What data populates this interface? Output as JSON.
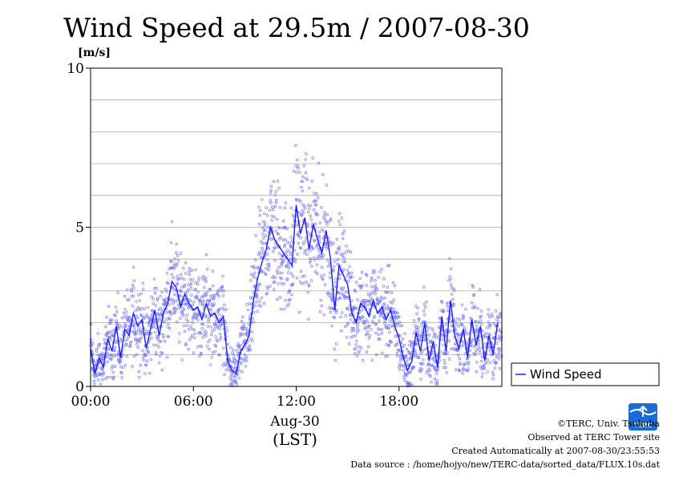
{
  "chart_data": {
    "type": "scatter",
    "title": "Wind Speed at 29.5m / 2007-08-30",
    "ylabel": "[m/s]",
    "xlabel": "Aug-30",
    "xlabel2": "(LST)",
    "ylim": [
      0,
      10
    ],
    "xlim": [
      0,
      24
    ],
    "y_ticks": [
      "0",
      "5",
      "10"
    ],
    "x_ticks": [
      "00:00",
      "06:00",
      "12:00",
      "18:00"
    ],
    "x_tick_hours": [
      0,
      6,
      12,
      18
    ],
    "grid": true,
    "legend_position": "right",
    "colors": {
      "series": "#1a1aff",
      "scatter": "#6a6aff",
      "grid": "#aaaaaa"
    },
    "series": [
      {
        "name": "Wind Speed",
        "x_hours": [
          0.0,
          0.25,
          0.5,
          0.75,
          1.0,
          1.25,
          1.5,
          1.75,
          2.0,
          2.25,
          2.5,
          2.75,
          3.0,
          3.25,
          3.5,
          3.75,
          4.0,
          4.25,
          4.5,
          4.75,
          5.0,
          5.25,
          5.5,
          5.75,
          6.0,
          6.25,
          6.5,
          6.75,
          7.0,
          7.25,
          7.5,
          7.75,
          8.0,
          8.25,
          8.5,
          8.75,
          9.0,
          9.25,
          9.5,
          9.75,
          10.0,
          10.25,
          10.5,
          10.75,
          11.0,
          11.25,
          11.5,
          11.75,
          12.0,
          12.25,
          12.5,
          12.75,
          13.0,
          13.25,
          13.5,
          13.75,
          14.0,
          14.25,
          14.5,
          14.75,
          15.0,
          15.25,
          15.5,
          15.75,
          16.0,
          16.25,
          16.5,
          16.75,
          17.0,
          17.25,
          17.5,
          17.75,
          18.0,
          18.25,
          18.5,
          18.75,
          19.0,
          19.25,
          19.5,
          19.75,
          20.0,
          20.25,
          20.5,
          20.75,
          21.0,
          21.25,
          21.5,
          21.75,
          22.0,
          22.25,
          22.5,
          22.75,
          23.0,
          23.25,
          23.5,
          23.75
        ],
        "values": [
          1.2,
          0.4,
          0.9,
          0.6,
          1.5,
          1.1,
          1.9,
          0.9,
          1.8,
          1.6,
          2.3,
          1.9,
          2.1,
          1.2,
          1.8,
          2.4,
          1.6,
          2.3,
          2.6,
          3.3,
          3.1,
          2.5,
          2.9,
          2.6,
          2.4,
          2.5,
          2.1,
          2.6,
          2.2,
          2.3,
          2.0,
          2.2,
          0.8,
          0.5,
          0.4,
          1.1,
          1.3,
          1.6,
          2.7,
          3.4,
          3.9,
          4.3,
          5.0,
          4.6,
          4.4,
          4.2,
          4.0,
          3.8,
          5.7,
          4.8,
          5.3,
          4.3,
          5.1,
          4.6,
          4.2,
          4.9,
          4.0,
          2.4,
          3.8,
          3.5,
          3.2,
          2.3,
          2.0,
          2.6,
          2.5,
          2.2,
          2.7,
          2.3,
          2.5,
          2.1,
          2.4,
          1.9,
          1.5,
          0.9,
          0.5,
          0.8,
          1.7,
          1.1,
          2.0,
          0.8,
          1.4,
          0.6,
          2.2,
          1.1,
          2.7,
          1.6,
          1.2,
          1.8,
          0.9,
          2.1,
          1.3,
          1.9,
          0.8,
          1.6,
          1.0,
          2.0
        ],
        "scatter_spread": 1.2
      }
    ],
    "legend": [
      "Wind Speed"
    ]
  },
  "credits": {
    "copyright": "©TERC, Univ. Tsukuba",
    "observed": "Observed at TERC Tower site",
    "created": "Created Automatically at 2007-08-30/23:55:53",
    "source": "Data source : /home/hojyo/new/TERC-data/sorted_data/FLUX.10s.dat"
  },
  "logo": {
    "text": "TERC",
    "color": "#1a6ad8"
  }
}
